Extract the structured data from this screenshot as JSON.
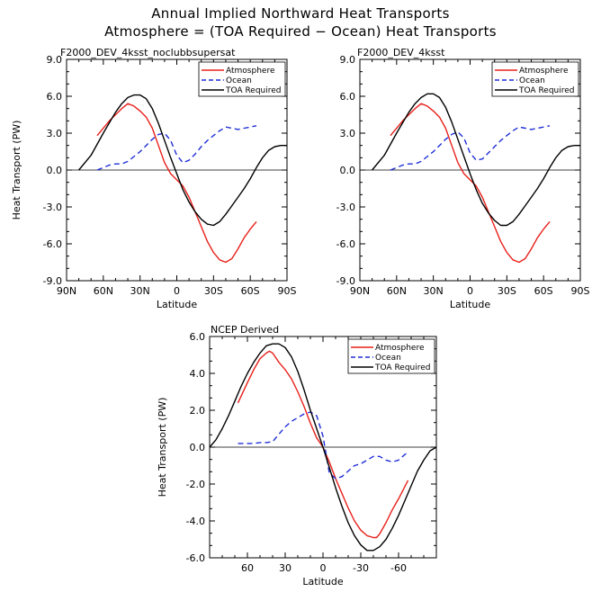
{
  "title_line1": "Annual Implied Northward Heat Transports",
  "title_line2": "Atmosphere = (TOA Required − Ocean) Heat Transports",
  "colors": {
    "atmosphere": "#e8201a",
    "ocean": "#1f2fd6",
    "toa": "#000000"
  },
  "chart_data": [
    {
      "type": "line",
      "subtitle": "F2000_DEV_4ksst_noclubbsupersat",
      "xlabel": "Latitude",
      "ylabel": "Heat Transport (PW)",
      "xlim": [
        90,
        -90
      ],
      "ylim": [
        -9,
        9
      ],
      "xtick_values": [
        90,
        60,
        30,
        0,
        -30,
        -60,
        -90
      ],
      "xtick_labels": [
        "90N",
        "60N",
        "30N",
        "0",
        "30S",
        "60S",
        "90S"
      ],
      "ytick_values": [
        9,
        6,
        3,
        0,
        -3,
        -6,
        -9
      ],
      "ytick_labels": [
        "9.0",
        "6.0",
        "3.0",
        "0.0",
        "-3.0",
        "-6.0",
        "-9.0"
      ],
      "legend": [
        "Atmosphere",
        "Ocean",
        "TOA Required"
      ],
      "legend_position": "top-right",
      "zero_line": true,
      "series": [
        {
          "name": "Atmosphere",
          "style": "solid",
          "color_key": "atmosphere",
          "x": [
            65,
            55,
            45,
            40,
            35,
            30,
            25,
            20,
            15,
            10,
            5,
            0,
            -5,
            -10,
            -15,
            -20,
            -25,
            -30,
            -35,
            -40,
            -45,
            -50,
            -55,
            -60,
            -65
          ],
          "y": [
            2.8,
            4.0,
            5.0,
            5.4,
            5.2,
            4.8,
            4.3,
            3.4,
            2.0,
            0.6,
            -0.3,
            -0.8,
            -1.3,
            -2.2,
            -3.4,
            -4.6,
            -5.8,
            -6.7,
            -7.3,
            -7.5,
            -7.2,
            -6.4,
            -5.5,
            -4.8,
            -4.2
          ]
        },
        {
          "name": "Ocean",
          "style": "dashed",
          "color_key": "ocean",
          "x": [
            65,
            60,
            55,
            50,
            45,
            40,
            35,
            30,
            25,
            20,
            15,
            10,
            5,
            0,
            -5,
            -10,
            -15,
            -20,
            -25,
            -30,
            -35,
            -40,
            -45,
            -50,
            -55,
            -60,
            -65
          ],
          "y": [
            0.0,
            0.2,
            0.4,
            0.5,
            0.5,
            0.7,
            1.1,
            1.5,
            2.0,
            2.5,
            2.9,
            3.0,
            2.4,
            1.2,
            0.6,
            0.8,
            1.3,
            1.9,
            2.4,
            2.8,
            3.2,
            3.5,
            3.4,
            3.3,
            3.4,
            3.5,
            3.6
          ]
        },
        {
          "name": "TOA Required",
          "style": "solid",
          "color_key": "toa",
          "x": [
            80,
            70,
            60,
            50,
            45,
            40,
            35,
            30,
            25,
            20,
            15,
            10,
            5,
            0,
            -5,
            -10,
            -15,
            -20,
            -25,
            -30,
            -35,
            -40,
            -45,
            -50,
            -55,
            -60,
            -65,
            -70,
            -75,
            -80,
            -85,
            -90
          ],
          "y": [
            0.0,
            1.2,
            3.0,
            4.7,
            5.4,
            5.9,
            6.1,
            6.1,
            5.8,
            5.0,
            3.8,
            2.4,
            1.0,
            -0.3,
            -1.6,
            -2.6,
            -3.4,
            -4.0,
            -4.4,
            -4.5,
            -4.2,
            -3.6,
            -2.9,
            -2.2,
            -1.5,
            -0.7,
            0.2,
            1.0,
            1.6,
            1.9,
            2.0,
            2.0
          ]
        }
      ]
    },
    {
      "type": "line",
      "subtitle": "F2000_DEV_4ksst",
      "xlabel": "Latitude",
      "ylabel": "",
      "xlim": [
        90,
        -90
      ],
      "ylim": [
        -9,
        9
      ],
      "xtick_values": [
        90,
        60,
        30,
        0,
        -30,
        -60,
        -90
      ],
      "xtick_labels": [
        "90N",
        "60N",
        "30N",
        "0",
        "30S",
        "60S",
        "90S"
      ],
      "ytick_values": [
        9,
        6,
        3,
        0,
        -3,
        -6,
        -9
      ],
      "ytick_labels": [
        "9.0",
        "6.0",
        "3.0",
        "0.0",
        "-3.0",
        "-6.0",
        "-9.0"
      ],
      "legend": [
        "Atmosphere",
        "Ocean",
        "TOA Required"
      ],
      "legend_position": "top-right",
      "zero_line": true,
      "series": [
        {
          "name": "Atmosphere",
          "style": "solid",
          "color_key": "atmosphere",
          "x": [
            65,
            55,
            45,
            40,
            35,
            30,
            25,
            20,
            15,
            10,
            5,
            0,
            -5,
            -10,
            -15,
            -20,
            -25,
            -30,
            -35,
            -40,
            -45,
            -50,
            -55,
            -60,
            -65
          ],
          "y": [
            2.8,
            4.0,
            5.0,
            5.4,
            5.2,
            4.8,
            4.3,
            3.4,
            2.0,
            0.6,
            -0.3,
            -0.8,
            -1.3,
            -2.2,
            -3.4,
            -4.6,
            -5.8,
            -6.7,
            -7.3,
            -7.5,
            -7.2,
            -6.4,
            -5.5,
            -4.8,
            -4.2
          ]
        },
        {
          "name": "Ocean",
          "style": "dashed",
          "color_key": "ocean",
          "x": [
            65,
            60,
            55,
            50,
            45,
            40,
            35,
            30,
            25,
            20,
            15,
            10,
            5,
            0,
            -5,
            -10,
            -15,
            -20,
            -25,
            -30,
            -35,
            -40,
            -45,
            -50,
            -55,
            -60,
            -65
          ],
          "y": [
            0.0,
            0.2,
            0.4,
            0.5,
            0.5,
            0.7,
            1.1,
            1.5,
            2.0,
            2.5,
            2.9,
            3.1,
            2.6,
            1.4,
            0.8,
            0.9,
            1.4,
            1.9,
            2.4,
            2.8,
            3.2,
            3.5,
            3.4,
            3.3,
            3.4,
            3.5,
            3.6
          ]
        },
        {
          "name": "TOA Required",
          "style": "solid",
          "color_key": "toa",
          "x": [
            80,
            70,
            60,
            50,
            45,
            40,
            35,
            30,
            25,
            20,
            15,
            10,
            5,
            0,
            -5,
            -10,
            -15,
            -20,
            -25,
            -30,
            -35,
            -40,
            -45,
            -50,
            -55,
            -60,
            -65,
            -70,
            -75,
            -80,
            -85,
            -90
          ],
          "y": [
            0.0,
            1.2,
            3.0,
            4.7,
            5.4,
            5.9,
            6.2,
            6.2,
            5.9,
            5.1,
            3.9,
            2.5,
            1.1,
            -0.3,
            -1.6,
            -2.7,
            -3.5,
            -4.1,
            -4.5,
            -4.5,
            -4.2,
            -3.6,
            -2.9,
            -2.2,
            -1.5,
            -0.7,
            0.2,
            1.0,
            1.6,
            1.9,
            2.0,
            2.0
          ]
        }
      ]
    },
    {
      "type": "line",
      "subtitle": "NCEP Derived",
      "xlabel": "Latitude",
      "ylabel": "Heat Transport (PW)",
      "xlim": [
        90,
        -90
      ],
      "ylim": [
        -6,
        6
      ],
      "xtick_values": [
        60,
        30,
        0,
        -30,
        -60
      ],
      "xtick_labels": [
        "60",
        "30",
        "0",
        "-30",
        "-60"
      ],
      "ytick_values": [
        6,
        4,
        2,
        0,
        -2,
        -4,
        -6
      ],
      "ytick_labels": [
        "6.0",
        "4.0",
        "2.0",
        "0.0",
        "-2.0",
        "-4.0",
        "-6.0"
      ],
      "legend": [
        "Atmosphere",
        "Ocean",
        "TOA Required"
      ],
      "legend_position": "top-right",
      "zero_line": true,
      "series": [
        {
          "name": "Atmosphere",
          "style": "solid",
          "color_key": "atmosphere",
          "x": [
            67.5,
            60,
            55,
            50,
            45,
            42.5,
            40,
            35,
            30,
            25,
            20,
            15,
            10,
            5,
            0,
            -5,
            -10,
            -15,
            -20,
            -25,
            -30,
            -35,
            -40,
            -42.5,
            -45,
            -50,
            -55,
            -60,
            -67.5
          ],
          "y": [
            2.4,
            3.5,
            4.2,
            4.8,
            5.1,
            5.2,
            5.1,
            4.6,
            4.2,
            3.7,
            3.0,
            2.2,
            1.3,
            0.5,
            0.0,
            -0.8,
            -1.7,
            -2.5,
            -3.3,
            -4.0,
            -4.5,
            -4.8,
            -4.9,
            -4.9,
            -4.7,
            -4.1,
            -3.4,
            -2.8,
            -1.8
          ]
        },
        {
          "name": "Ocean",
          "style": "dashed",
          "color_key": "ocean",
          "x": [
            67.5,
            60,
            55,
            50,
            45,
            40,
            35,
            30,
            25,
            20,
            15,
            10,
            5,
            0,
            -5,
            -10,
            -15,
            -20,
            -25,
            -30,
            -35,
            -40,
            -45,
            -50,
            -55,
            -60,
            -65,
            -67.5
          ],
          "y": [
            0.2,
            0.2,
            0.2,
            0.25,
            0.25,
            0.3,
            0.7,
            1.1,
            1.4,
            1.6,
            1.8,
            1.9,
            1.7,
            0.6,
            -1.4,
            -1.7,
            -1.6,
            -1.3,
            -1.0,
            -0.9,
            -0.7,
            -0.5,
            -0.5,
            -0.7,
            -0.8,
            -0.7,
            -0.4,
            -0.3
          ]
        },
        {
          "name": "TOA Required",
          "style": "solid",
          "color_key": "toa",
          "x": [
            90,
            85,
            80,
            75,
            70,
            65,
            60,
            55,
            50,
            45,
            40,
            35,
            30,
            25,
            20,
            15,
            10,
            5,
            0,
            -5,
            -10,
            -15,
            -20,
            -25,
            -30,
            -35,
            -40,
            -45,
            -50,
            -55,
            -60,
            -65,
            -70,
            -75,
            -80,
            -85,
            -90
          ],
          "y": [
            0.0,
            0.4,
            1.0,
            1.7,
            2.5,
            3.3,
            4.0,
            4.6,
            5.1,
            5.5,
            5.6,
            5.6,
            5.4,
            4.9,
            4.1,
            3.1,
            2.0,
            1.0,
            0.0,
            -1.1,
            -2.2,
            -3.2,
            -4.1,
            -4.8,
            -5.3,
            -5.6,
            -5.6,
            -5.4,
            -5.0,
            -4.4,
            -3.7,
            -2.9,
            -2.1,
            -1.3,
            -0.7,
            -0.2,
            0.0
          ]
        }
      ]
    }
  ]
}
